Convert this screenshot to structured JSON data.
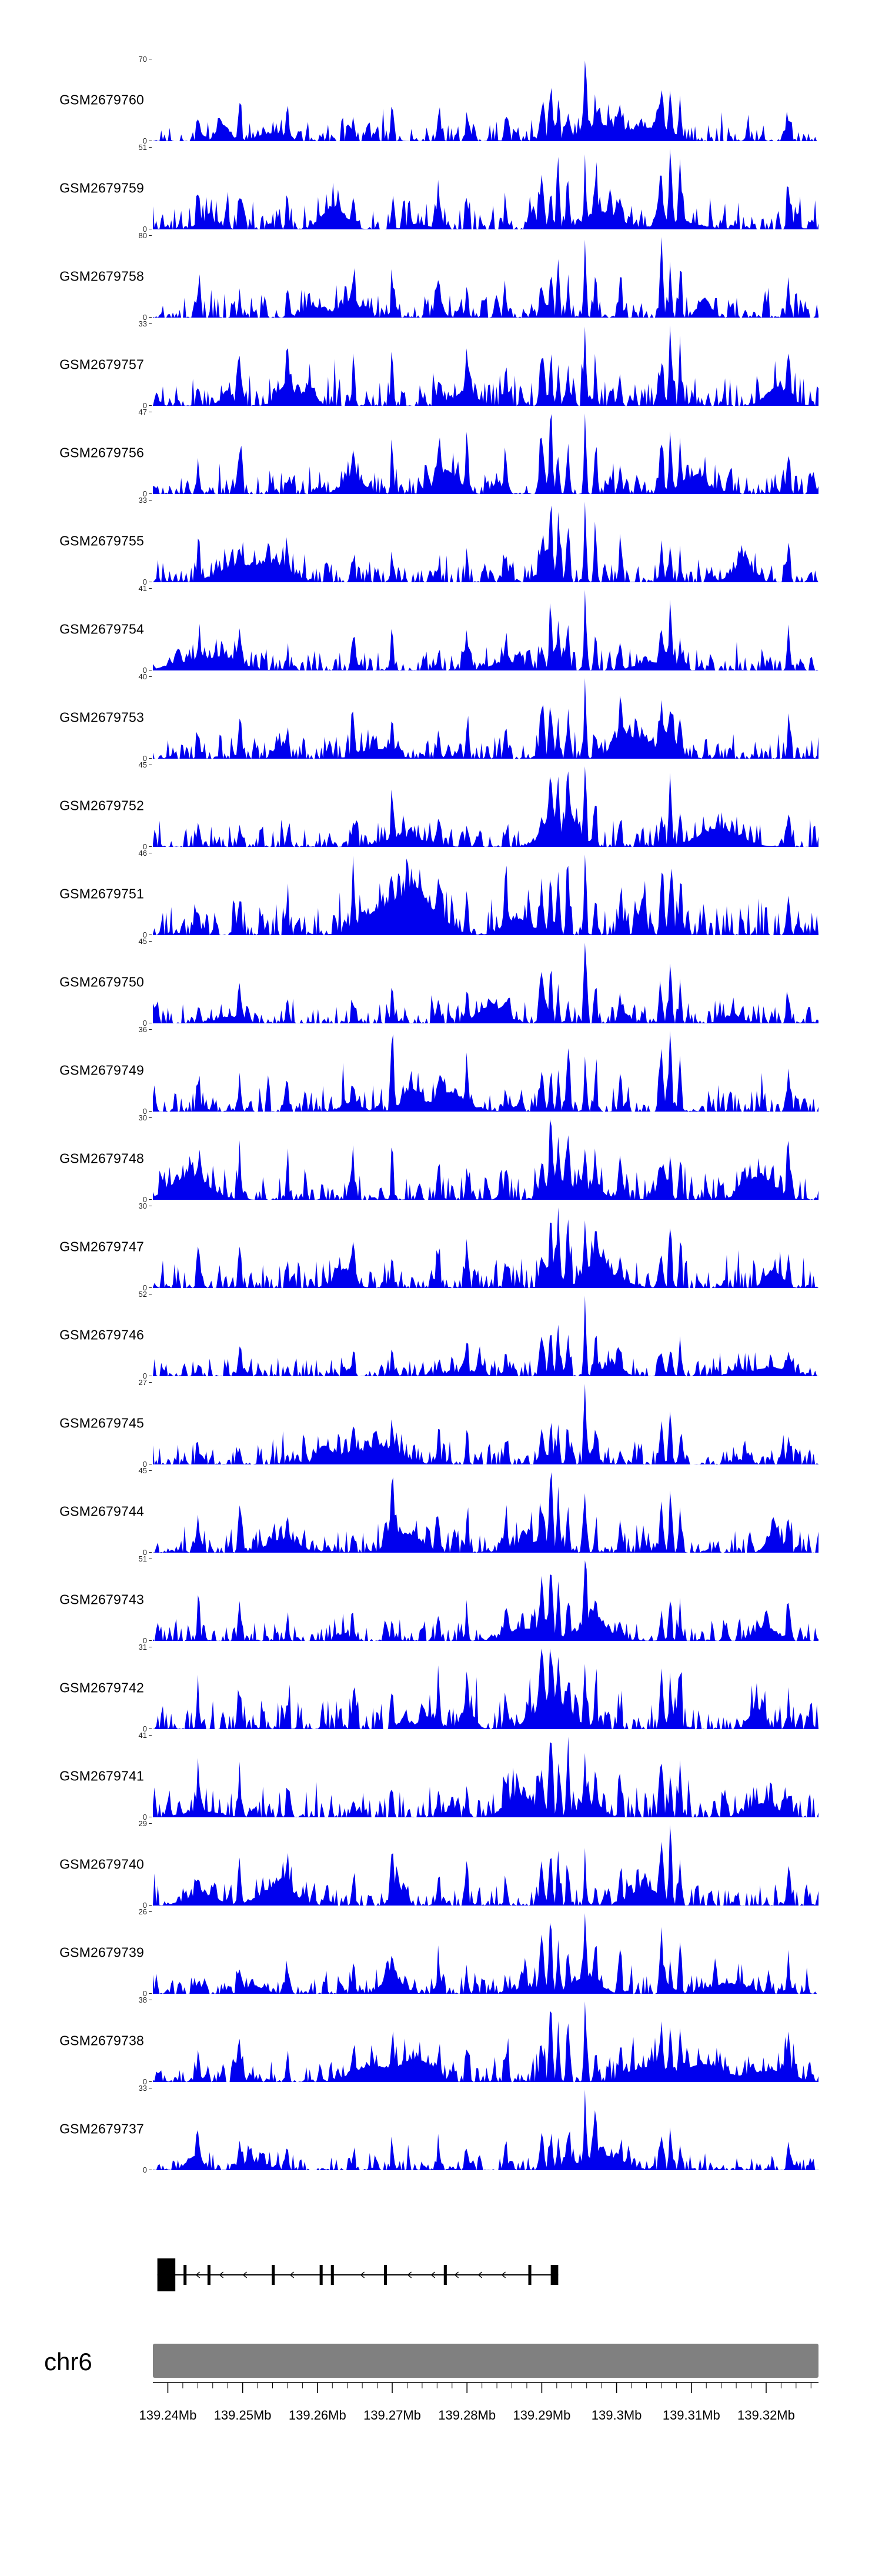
{
  "figure": {
    "background": "#ffffff",
    "accent_color": "#0000EE",
    "ideogram_color": "#808080",
    "chromosome_label": "chr6"
  },
  "chart_data": {
    "type": "area",
    "title": "",
    "xlabel": "",
    "ylabel": "",
    "x_domain_mb": [
      139.238,
      139.327
    ],
    "x_tick_labels": [
      "139.24Mb",
      "139.25Mb",
      "139.26Mb",
      "139.27Mb",
      "139.28Mb",
      "139.29Mb",
      "139.3Mb",
      "139.31Mb",
      "139.32Mb"
    ],
    "x_tick_values_mb": [
      139.24,
      139.25,
      139.26,
      139.27,
      139.28,
      139.29,
      139.3,
      139.31,
      139.32
    ],
    "minor_tick_start_mb": 139.24,
    "minor_tick_end_mb": 139.326,
    "minor_tick_step_mb": 0.002,
    "tracks": [
      {
        "label": "GSM2679760",
        "ymax": 70,
        "ymin": 0,
        "seed": 2679760
      },
      {
        "label": "GSM2679759",
        "ymax": 51,
        "ymin": 0,
        "seed": 2679759
      },
      {
        "label": "GSM2679758",
        "ymax": 80,
        "ymin": 0,
        "seed": 2679758
      },
      {
        "label": "GSM2679757",
        "ymax": 33,
        "ymin": 0,
        "seed": 2679757
      },
      {
        "label": "GSM2679756",
        "ymax": 47,
        "ymin": 0,
        "seed": 2679756
      },
      {
        "label": "GSM2679755",
        "ymax": 33,
        "ymin": 0,
        "seed": 2679755
      },
      {
        "label": "GSM2679754",
        "ymax": 41,
        "ymin": 0,
        "seed": 2679754
      },
      {
        "label": "GSM2679753",
        "ymax": 40,
        "ymin": 0,
        "seed": 2679753
      },
      {
        "label": "GSM2679752",
        "ymax": 45,
        "ymin": 0,
        "seed": 2679752
      },
      {
        "label": "GSM2679751",
        "ymax": 46,
        "ymin": 0,
        "seed": 2679751
      },
      {
        "label": "GSM2679750",
        "ymax": 45,
        "ymin": 0,
        "seed": 2679750
      },
      {
        "label": "GSM2679749",
        "ymax": 36,
        "ymin": 0,
        "seed": 2679749
      },
      {
        "label": "GSM2679748",
        "ymax": 30,
        "ymin": 0,
        "seed": 2679748
      },
      {
        "label": "GSM2679747",
        "ymax": 30,
        "ymin": 0,
        "seed": 2679747
      },
      {
        "label": "GSM2679746",
        "ymax": 52,
        "ymin": 0,
        "seed": 2679746
      },
      {
        "label": "GSM2679745",
        "ymax": 27,
        "ymin": 0,
        "seed": 2679745
      },
      {
        "label": "GSM2679744",
        "ymax": 45,
        "ymin": 0,
        "seed": 2679744
      },
      {
        "label": "GSM2679743",
        "ymax": 51,
        "ymin": 0,
        "seed": 2679743
      },
      {
        "label": "GSM2679742",
        "ymax": 31,
        "ymin": 0,
        "seed": 2679742
      },
      {
        "label": "GSM2679741",
        "ymax": 41,
        "ymin": 0,
        "seed": 2679741
      },
      {
        "label": "GSM2679740",
        "ymax": 29,
        "ymin": 0,
        "seed": 2679740
      },
      {
        "label": "GSM2679739",
        "ymax": 26,
        "ymin": 0,
        "seed": 2679739
      },
      {
        "label": "GSM2679738",
        "ymax": 38,
        "ymin": 0,
        "seed": 2679738
      },
      {
        "label": "GSM2679737",
        "ymax": 33,
        "ymin": 0,
        "seed": 2679737
      }
    ],
    "shared_peaks": [
      {
        "pos_mb": 139.2441,
        "amp": 0.3,
        "width_mb": 0.0003
      },
      {
        "pos_mb": 139.2496,
        "amp": 0.5,
        "width_mb": 0.00028
      },
      {
        "pos_mb": 139.256,
        "amp": 0.32,
        "width_mb": 0.00025
      },
      {
        "pos_mb": 139.2648,
        "amp": 0.35,
        "width_mb": 0.0003
      },
      {
        "pos_mb": 139.27,
        "amp": 0.5,
        "width_mb": 0.00024
      },
      {
        "pos_mb": 139.2762,
        "amp": 0.38,
        "width_mb": 0.00028
      },
      {
        "pos_mb": 139.28,
        "amp": 0.42,
        "width_mb": 0.00024
      },
      {
        "pos_mb": 139.2852,
        "amp": 0.35,
        "width_mb": 0.0003
      },
      {
        "pos_mb": 139.29,
        "amp": 0.6,
        "width_mb": 0.0004
      },
      {
        "pos_mb": 139.2912,
        "amp": 0.85,
        "width_mb": 0.00028
      },
      {
        "pos_mb": 139.2922,
        "amp": 0.75,
        "width_mb": 0.00024
      },
      {
        "pos_mb": 139.2935,
        "amp": 0.65,
        "width_mb": 0.00028
      },
      {
        "pos_mb": 139.2958,
        "amp": 1.0,
        "width_mb": 0.00022
      },
      {
        "pos_mb": 139.2972,
        "amp": 0.55,
        "width_mb": 0.00025
      },
      {
        "pos_mb": 139.3005,
        "amp": 0.4,
        "width_mb": 0.00028
      },
      {
        "pos_mb": 139.306,
        "amp": 0.7,
        "width_mb": 0.0003
      },
      {
        "pos_mb": 139.3072,
        "amp": 0.85,
        "width_mb": 0.00026
      },
      {
        "pos_mb": 139.3085,
        "amp": 0.6,
        "width_mb": 0.00025
      },
      {
        "pos_mb": 139.323,
        "amp": 0.48,
        "width_mb": 0.0003
      }
    ],
    "noise": {
      "points": 400,
      "spike_amp": 0.38,
      "spike_sharpness": 4,
      "extra_spike_prob": 0.22,
      "wide_bumps": 5
    },
    "gene_model": {
      "strand": "-",
      "line_start_mb": 139.2386,
      "line_end_mb": 139.2922,
      "first_exon_mb": [
        139.2386,
        139.241
      ],
      "exon_ticks_mb": [
        139.2423,
        139.2455,
        139.2541,
        139.2605,
        139.262,
        139.2691,
        139.2771,
        139.2884
      ],
      "last_exon_mb": [
        139.2912,
        139.2922
      ]
    }
  }
}
